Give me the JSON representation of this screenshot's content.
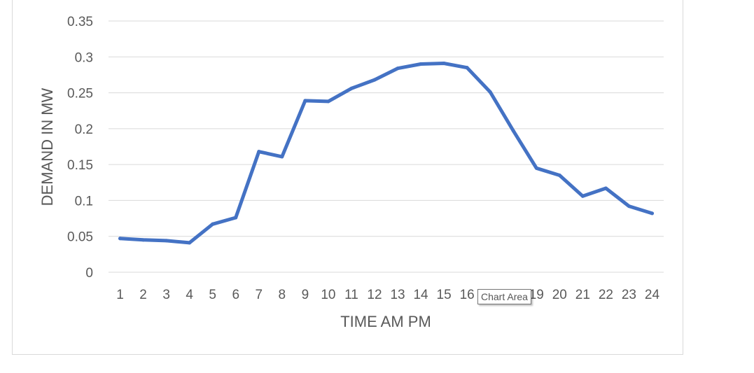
{
  "chart_data": {
    "type": "line",
    "xlabel": "TIME AM PM",
    "ylabel": "DEMAND IN MW",
    "categories": [
      "1",
      "2",
      "3",
      "4",
      "5",
      "6",
      "7",
      "8",
      "9",
      "10",
      "11",
      "12",
      "13",
      "14",
      "15",
      "16",
      "17",
      "18",
      "19",
      "20",
      "21",
      "22",
      "23",
      "24"
    ],
    "series": [
      {
        "color": "#4472c4",
        "values": [
          0.047,
          0.045,
          0.044,
          0.041,
          0.067,
          0.076,
          0.168,
          0.161,
          0.239,
          0.238,
          0.256,
          0.268,
          0.284,
          0.29,
          0.291,
          0.285,
          0.251,
          0.197,
          0.145,
          0.135,
          0.106,
          0.117,
          0.092,
          0.082
        ]
      }
    ],
    "ylim": [
      0,
      0.35
    ],
    "yticks": [
      "0",
      "0.05",
      "0.1",
      "0.15",
      "0.2",
      "0.25",
      "0.3",
      "0.35"
    ],
    "grid": true,
    "legend": "none"
  },
  "tooltip": {
    "text": "Chart Area"
  }
}
